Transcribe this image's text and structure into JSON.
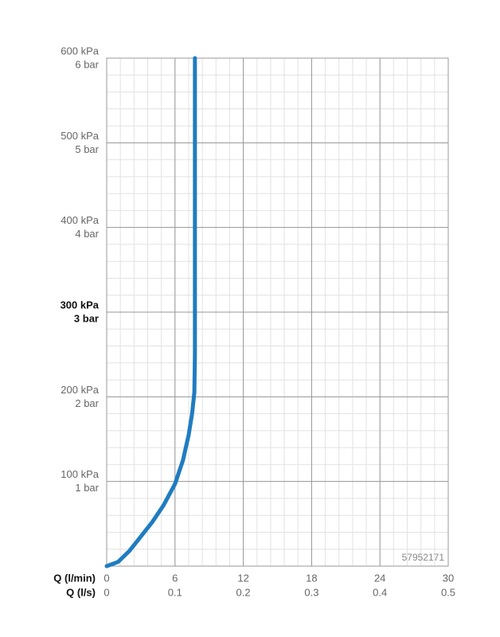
{
  "chart_data": {
    "type": "line",
    "x": [
      0,
      1,
      2,
      3,
      4,
      5,
      6,
      6.7,
      7.2,
      7.5,
      7.7,
      7.75,
      7.75
    ],
    "series": [
      {
        "color": "#1f7cc1",
        "values": [
          0,
          5,
          18,
          35,
          52,
          72,
          97,
          125,
          155,
          180,
          205,
          250,
          600
        ]
      }
    ],
    "xlim": [
      0,
      30
    ],
    "xticks": [
      0,
      6,
      12,
      18,
      24,
      30
    ],
    "x2lim": [
      0,
      0.5
    ],
    "x2ticks": [
      0,
      0.1,
      0.2,
      0.3,
      0.4,
      0.5
    ],
    "xlabel": "Q (l/min)",
    "x2label": "Q (l/s)",
    "ylim": [
      0,
      600
    ],
    "yticks": [
      {
        "value": 100,
        "label": "100 kPa"
      },
      {
        "value": 200,
        "label": "200 kPa"
      },
      {
        "value": 300,
        "label": "300 kPa"
      },
      {
        "value": 400,
        "label": "400 kPa"
      },
      {
        "value": 500,
        "label": "500 kPa"
      },
      {
        "value": 600,
        "label": "600 kPa"
      }
    ],
    "y2lim": [
      0,
      6
    ],
    "y2ticks": [
      {
        "value": 1,
        "label": "1 bar"
      },
      {
        "value": 2,
        "label": "2 bar"
      },
      {
        "value": 3,
        "label": "3 bar"
      },
      {
        "value": 4,
        "label": "4 bar"
      },
      {
        "value": 5,
        "label": "5 bar"
      },
      {
        "value": 6,
        "label": "6 bar"
      }
    ],
    "highlight_ytick": 300,
    "grid": true,
    "x_minor_step": 1.2,
    "y_minor_step": 20,
    "annotation": "57952171"
  }
}
